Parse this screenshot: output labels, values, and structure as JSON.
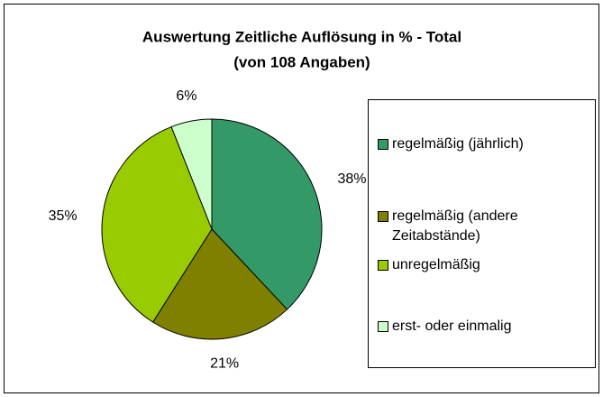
{
  "chart_data": {
    "type": "pie",
    "title": "Auswertung Zeitliche Auflösung in % - Total",
    "subtitle": "(von 108 Angaben)",
    "categories": [
      "regelmäßig (jährlich)",
      "regelmäßig (andere Zeitabstände)",
      "unregelmäßig",
      "erst- oder einmalig"
    ],
    "values": [
      38,
      21,
      35,
      6
    ],
    "value_labels": [
      "38%",
      "21%",
      "35%",
      "6%"
    ],
    "colors": [
      "#339966",
      "#808000",
      "#99cc00",
      "#ccffcc"
    ],
    "legend": "right"
  }
}
